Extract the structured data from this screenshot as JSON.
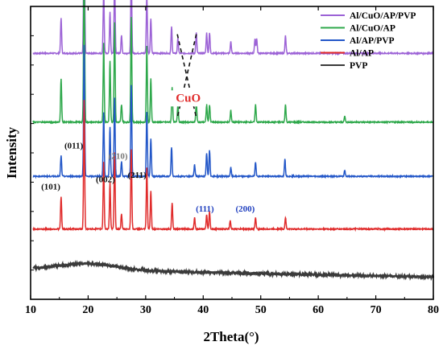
{
  "chart_data": {
    "type": "line",
    "title": "",
    "xlabel": "2Theta(°)",
    "ylabel": "Intensity",
    "xlim": [
      10,
      80
    ],
    "x_ticks": [
      "10",
      "20",
      "30",
      "40",
      "50",
      "60",
      "70",
      "80"
    ],
    "y_ticks_labeled": false,
    "grid": false,
    "legend": {
      "placement": "top-right",
      "order": [
        "Al/CuO/AP/PVP",
        "Al/CuO/AP",
        "Al/AP/PVP",
        "Al/AP",
        "PVP"
      ]
    },
    "intensity_units": "arbitrary (curves vertically offset)",
    "series": [
      {
        "name": "Al/CuO/AP/PVP",
        "color": "#9c62d6",
        "baseline": 0.84,
        "background": "flat",
        "peaks": [
          [
            15.3,
            0.12
          ],
          [
            19.3,
            0.5
          ],
          [
            22.7,
            0.22
          ],
          [
            23.8,
            0.14
          ],
          [
            24.6,
            0.26
          ],
          [
            25.8,
            0.06
          ],
          [
            27.5,
            0.27
          ],
          [
            30.2,
            0.2
          ],
          [
            30.9,
            0.12
          ],
          [
            34.5,
            0.09
          ],
          [
            35.6,
            0.05
          ],
          [
            38.8,
            0.07
          ],
          [
            40.6,
            0.07
          ],
          [
            41.1,
            0.07
          ],
          [
            44.8,
            0.04
          ],
          [
            49.0,
            0.05
          ],
          [
            49.3,
            0.05
          ],
          [
            54.3,
            0.06
          ]
        ]
      },
      {
        "name": "Al/CuO/AP",
        "color": "#2ea84b",
        "baseline": 0.605,
        "background": "flat",
        "peaks": [
          [
            15.3,
            0.15
          ],
          [
            19.3,
            0.6
          ],
          [
            22.7,
            0.27
          ],
          [
            23.8,
            0.21
          ],
          [
            24.6,
            0.34
          ],
          [
            25.8,
            0.06
          ],
          [
            27.5,
            0.36
          ],
          [
            30.2,
            0.26
          ],
          [
            30.9,
            0.15
          ],
          [
            34.6,
            0.12
          ],
          [
            35.6,
            0.06
          ],
          [
            38.8,
            0.07
          ],
          [
            40.6,
            0.06
          ],
          [
            41.1,
            0.06
          ],
          [
            44.8,
            0.04
          ],
          [
            49.1,
            0.06
          ],
          [
            54.3,
            0.06
          ],
          [
            64.6,
            0.02
          ]
        ]
      },
      {
        "name": "Al/AP/PVP",
        "color": "#2357c8",
        "baseline": 0.42,
        "background": "flat",
        "peaks": [
          [
            15.3,
            0.07
          ],
          [
            19.3,
            0.45
          ],
          [
            22.7,
            0.22
          ],
          [
            23.8,
            0.17
          ],
          [
            24.6,
            0.27
          ],
          [
            25.8,
            0.05
          ],
          [
            27.5,
            0.31
          ],
          [
            30.2,
            0.22
          ],
          [
            30.9,
            0.13
          ],
          [
            34.5,
            0.1
          ],
          [
            38.5,
            0.04
          ],
          [
            40.6,
            0.08
          ],
          [
            41.1,
            0.09
          ],
          [
            44.8,
            0.03
          ],
          [
            49.1,
            0.05
          ],
          [
            54.2,
            0.06
          ],
          [
            64.6,
            0.02
          ]
        ]
      },
      {
        "name": "Al/AP",
        "color": "#e02b2b",
        "baseline": 0.24,
        "background": "flat",
        "peaks": [
          [
            15.3,
            0.11
          ],
          [
            19.3,
            0.44
          ],
          [
            22.7,
            0.23
          ],
          [
            23.8,
            0.16
          ],
          [
            24.6,
            0.26
          ],
          [
            25.8,
            0.05
          ],
          [
            27.5,
            0.27
          ],
          [
            30.2,
            0.21
          ],
          [
            30.9,
            0.13
          ],
          [
            34.6,
            0.09
          ],
          [
            38.5,
            0.04
          ],
          [
            40.6,
            0.05
          ],
          [
            41.1,
            0.06
          ],
          [
            44.7,
            0.03
          ],
          [
            49.1,
            0.04
          ],
          [
            54.3,
            0.04
          ]
        ]
      },
      {
        "name": "PVP",
        "color": "#3a3a3a",
        "baseline": 0.1,
        "background": "broad-hump",
        "peaks": []
      }
    ],
    "annotations": [
      {
        "text": "(101)",
        "x": 13.5,
        "y": 0.375,
        "color": "#111111"
      },
      {
        "text": "(011)",
        "x": 17.5,
        "y": 0.515,
        "color": "#111111"
      },
      {
        "text": "(002)",
        "x": 23.0,
        "y": 0.4,
        "color": "#111111"
      },
      {
        "text": "(210)",
        "x": 25.2,
        "y": 0.48,
        "color": "#777777"
      },
      {
        "text": "(211)",
        "x": 28.5,
        "y": 0.415,
        "color": "#111111"
      },
      {
        "text": "(111)",
        "x": 40.3,
        "y": 0.3,
        "color": "#1f3fbf"
      },
      {
        "text": "(200)",
        "x": 47.3,
        "y": 0.3,
        "color": "#1f3fbf"
      },
      {
        "text": "CuO",
        "x": 37.4,
        "y": 0.675,
        "color": "#e02b2b"
      }
    ],
    "cuo_guide_lines": {
      "from_peaks": [
        [
          35.5,
          0.905
        ],
        [
          38.8,
          0.905
        ]
      ],
      "to_peaks": [
        [
          35.5,
          0.62
        ],
        [
          38.8,
          0.62
        ]
      ],
      "style": "dashed",
      "color": "#111111"
    }
  }
}
